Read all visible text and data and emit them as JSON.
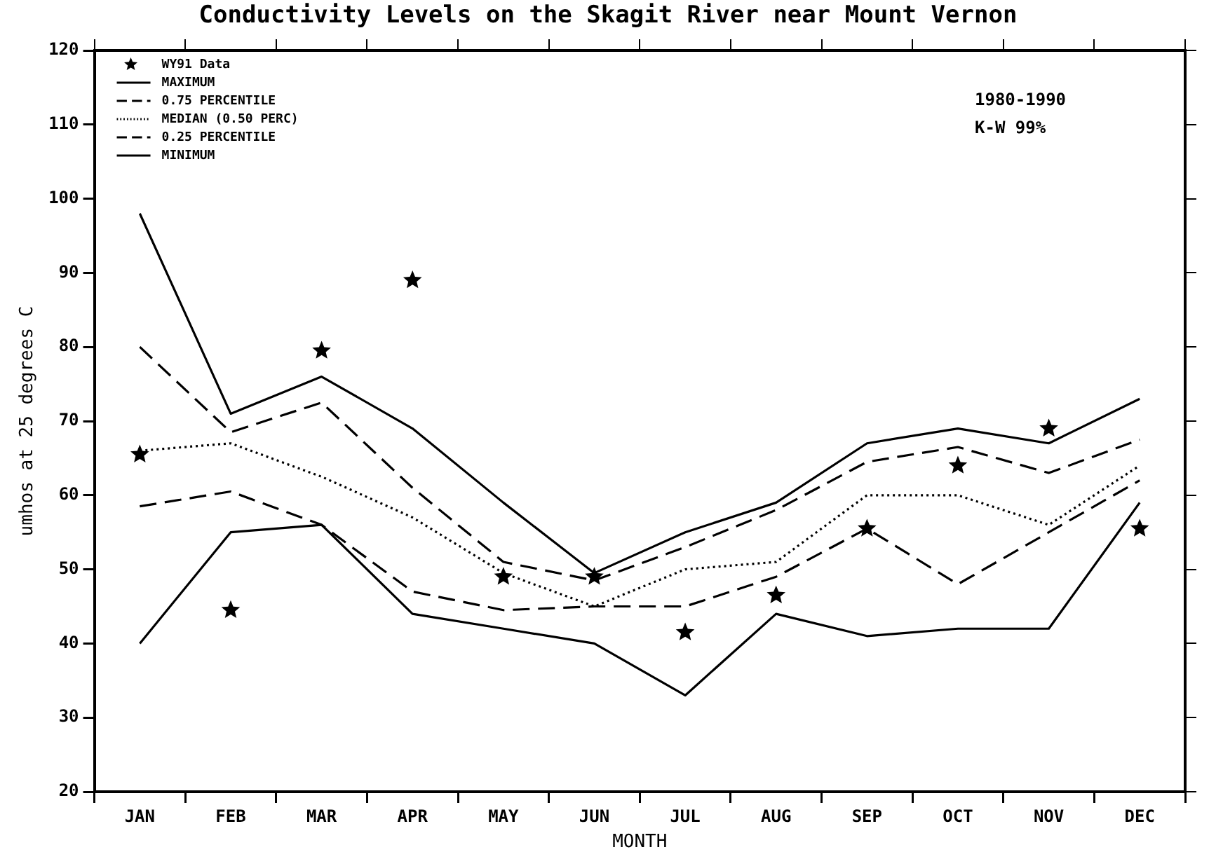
{
  "chart_data": {
    "type": "line",
    "title": "Conductivity Levels on the Skagit River near Mount Vernon",
    "xlabel": "MONTH",
    "ylabel": "umhos at 25 degrees C",
    "categories": [
      "JAN",
      "FEB",
      "MAR",
      "APR",
      "MAY",
      "JUN",
      "JUL",
      "AUG",
      "SEP",
      "OCT",
      "NOV",
      "DEC"
    ],
    "series": [
      {
        "name": "WY91 Data",
        "type": "scatter",
        "marker": "star",
        "color": "#000000",
        "values": [
          65.5,
          44.5,
          79.5,
          89,
          49,
          49,
          41.5,
          46.5,
          55.5,
          64,
          69,
          55.5
        ]
      },
      {
        "name": "MAXIMUM",
        "color": "#000000",
        "line_style": "solid",
        "values": [
          98,
          71,
          76,
          69,
          59,
          49.5,
          55,
          59,
          67,
          69,
          67,
          73
        ]
      },
      {
        "name": "0.75 PERCENTILE",
        "color": "#000000",
        "line_style": "dashed",
        "values": [
          80,
          68.5,
          72.5,
          61,
          51,
          48.5,
          53,
          58,
          64.5,
          66.5,
          63,
          67.5
        ]
      },
      {
        "name": "MEDIAN (0.50 PERC)",
        "color": "#000000",
        "line_style": "dotted",
        "values": [
          66,
          67,
          62.5,
          57,
          49.5,
          45,
          50,
          51,
          60,
          60,
          56,
          64
        ]
      },
      {
        "name": "0.25 PERCENTILE",
        "color": "#000000",
        "line_style": "dashed",
        "values": [
          58.5,
          60.5,
          56,
          47,
          44.5,
          45,
          45,
          49,
          55.5,
          48,
          55,
          62
        ]
      },
      {
        "name": "MINIMUM",
        "color": "#000000",
        "line_style": "solid",
        "values": [
          40,
          55,
          56,
          44,
          42,
          40,
          33,
          44,
          41,
          42,
          42,
          59
        ]
      }
    ],
    "ylim": [
      20,
      120
    ],
    "yticks": [
      20,
      30,
      40,
      50,
      60,
      70,
      80,
      90,
      100,
      110,
      120
    ],
    "grid": false,
    "legend": "top left",
    "marker": "none",
    "annotations": [
      "1980-1990",
      "K-W 99%"
    ]
  }
}
